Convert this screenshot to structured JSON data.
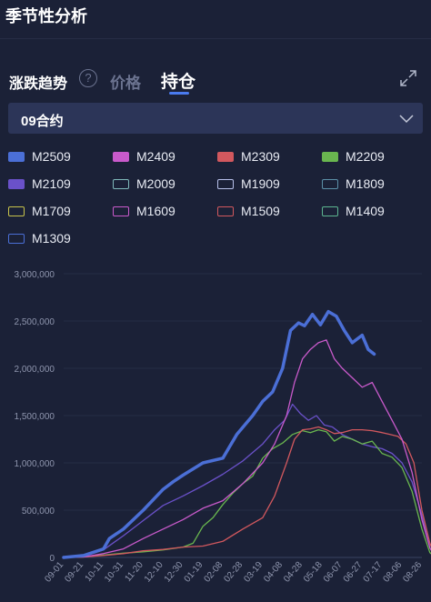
{
  "page": {
    "title": "季节性分析"
  },
  "tabs": {
    "trend_label": "涨跌趋势",
    "help_icon": "?",
    "price_label": "价格",
    "position_label": "持仓",
    "active": "position_label"
  },
  "icons": {
    "expand": "expand-icon",
    "help": "question-circle-icon",
    "dropdown": "chevron-down-icon"
  },
  "contract_select": {
    "value": "09合约"
  },
  "colors": {
    "background": "#1b2137",
    "accent": "#4a7bf0",
    "select_bg": "#2c3558"
  },
  "chart_data": {
    "type": "line",
    "x_ticks": [
      "09-01",
      "09-21",
      "10-11",
      "10-31",
      "11-20",
      "12-10",
      "12-30",
      "01-19",
      "02-08",
      "02-28",
      "03-19",
      "04-08",
      "04-28",
      "05-18",
      "06-07",
      "06-27",
      "07-17",
      "08-06",
      "08-26"
    ],
    "y_ticks": [
      "0",
      "500,000",
      "1,000,000",
      "1,500,000",
      "2,000,000",
      "2,500,000",
      "3,000,000"
    ],
    "ylim": [
      0,
      3000000
    ],
    "grid": true,
    "legend_position": "top",
    "series": [
      {
        "name": "M2509",
        "color": "#4b6fd6",
        "filled": true,
        "bold": true,
        "points": [
          [
            0,
            0
          ],
          [
            1,
            20000
          ],
          [
            2,
            90000
          ],
          [
            2.3,
            200000
          ],
          [
            3,
            300000
          ],
          [
            4,
            500000
          ],
          [
            5,
            720000
          ],
          [
            5.5,
            800000
          ],
          [
            6,
            870000
          ],
          [
            7,
            1000000
          ],
          [
            8,
            1050000
          ],
          [
            8.7,
            1300000
          ],
          [
            9.5,
            1500000
          ],
          [
            10,
            1650000
          ],
          [
            10.5,
            1750000
          ],
          [
            11,
            2000000
          ],
          [
            11.4,
            2400000
          ],
          [
            11.8,
            2480000
          ],
          [
            12.1,
            2450000
          ],
          [
            12.5,
            2570000
          ],
          [
            12.9,
            2460000
          ],
          [
            13.3,
            2600000
          ],
          [
            13.7,
            2550000
          ],
          [
            14.1,
            2400000
          ],
          [
            14.5,
            2270000
          ],
          [
            15,
            2350000
          ],
          [
            15.3,
            2200000
          ],
          [
            15.6,
            2150000
          ]
        ]
      },
      {
        "name": "M2409",
        "color": "#c95acb",
        "filled": true,
        "points": [
          [
            0,
            0
          ],
          [
            1,
            5000
          ],
          [
            2,
            40000
          ],
          [
            3,
            90000
          ],
          [
            4,
            200000
          ],
          [
            5,
            300000
          ],
          [
            6,
            400000
          ],
          [
            7,
            520000
          ],
          [
            8,
            600000
          ],
          [
            9,
            780000
          ],
          [
            10,
            1000000
          ],
          [
            10.6,
            1200000
          ],
          [
            11.2,
            1500000
          ],
          [
            11.6,
            1850000
          ],
          [
            12,
            2100000
          ],
          [
            12.4,
            2200000
          ],
          [
            12.8,
            2270000
          ],
          [
            13.2,
            2300000
          ],
          [
            13.6,
            2100000
          ],
          [
            14,
            2000000
          ],
          [
            14.5,
            1900000
          ],
          [
            15,
            1800000
          ],
          [
            15.5,
            1850000
          ],
          [
            16,
            1650000
          ],
          [
            16.5,
            1450000
          ],
          [
            17,
            1250000
          ],
          [
            17.5,
            900000
          ],
          [
            18,
            400000
          ],
          [
            18.4,
            100000
          ],
          [
            18.7,
            0
          ]
        ]
      },
      {
        "name": "M2309",
        "color": "#d2585e",
        "filled": true,
        "points": [
          [
            0,
            0
          ],
          [
            1,
            5000
          ],
          [
            2,
            20000
          ],
          [
            3,
            40000
          ],
          [
            4,
            70000
          ],
          [
            5,
            85000
          ],
          [
            6,
            110000
          ],
          [
            7,
            120000
          ],
          [
            8,
            170000
          ],
          [
            9,
            300000
          ],
          [
            10,
            420000
          ],
          [
            10.6,
            650000
          ],
          [
            11.2,
            1000000
          ],
          [
            11.6,
            1250000
          ],
          [
            12,
            1350000
          ],
          [
            12.4,
            1360000
          ],
          [
            12.8,
            1380000
          ],
          [
            13.2,
            1350000
          ],
          [
            13.6,
            1310000
          ],
          [
            14,
            1320000
          ],
          [
            14.5,
            1350000
          ],
          [
            15,
            1350000
          ],
          [
            15.5,
            1340000
          ],
          [
            16,
            1320000
          ],
          [
            16.4,
            1300000
          ],
          [
            16.8,
            1280000
          ],
          [
            17.2,
            1200000
          ],
          [
            17.6,
            1000000
          ],
          [
            18,
            500000
          ],
          [
            18.4,
            150000
          ],
          [
            18.7,
            0
          ]
        ]
      },
      {
        "name": "M2209",
        "color": "#69b64f",
        "filled": true,
        "points": [
          [
            0,
            0
          ],
          [
            1,
            5000
          ],
          [
            2,
            25000
          ],
          [
            3,
            45000
          ],
          [
            4,
            60000
          ],
          [
            5,
            80000
          ],
          [
            6,
            110000
          ],
          [
            6.5,
            150000
          ],
          [
            7,
            330000
          ],
          [
            7.5,
            420000
          ],
          [
            8,
            560000
          ],
          [
            8.5,
            680000
          ],
          [
            9,
            780000
          ],
          [
            9.5,
            860000
          ],
          [
            10,
            1050000
          ],
          [
            10.5,
            1150000
          ],
          [
            11,
            1210000
          ],
          [
            11.5,
            1300000
          ],
          [
            12,
            1340000
          ],
          [
            12.4,
            1320000
          ],
          [
            12.8,
            1350000
          ],
          [
            13.2,
            1330000
          ],
          [
            13.6,
            1230000
          ],
          [
            14,
            1280000
          ],
          [
            14.5,
            1250000
          ],
          [
            15,
            1200000
          ],
          [
            15.5,
            1230000
          ],
          [
            16,
            1100000
          ],
          [
            16.5,
            1060000
          ],
          [
            17,
            950000
          ],
          [
            17.5,
            700000
          ],
          [
            18,
            300000
          ],
          [
            18.4,
            50000
          ],
          [
            18.7,
            0
          ]
        ]
      },
      {
        "name": "M2109",
        "color": "#6a51c9",
        "filled": true,
        "points": [
          [
            0,
            0
          ],
          [
            1,
            10000
          ],
          [
            2,
            80000
          ],
          [
            3,
            230000
          ],
          [
            4,
            390000
          ],
          [
            5,
            550000
          ],
          [
            6,
            650000
          ],
          [
            7,
            760000
          ],
          [
            8,
            880000
          ],
          [
            9,
            1020000
          ],
          [
            10,
            1200000
          ],
          [
            10.6,
            1350000
          ],
          [
            11.1,
            1450000
          ],
          [
            11.5,
            1620000
          ],
          [
            11.9,
            1520000
          ],
          [
            12.3,
            1450000
          ],
          [
            12.7,
            1500000
          ],
          [
            13.1,
            1400000
          ],
          [
            13.5,
            1380000
          ],
          [
            14,
            1300000
          ],
          [
            14.5,
            1250000
          ],
          [
            15,
            1200000
          ],
          [
            15.5,
            1170000
          ],
          [
            16,
            1150000
          ],
          [
            16.5,
            1100000
          ],
          [
            17,
            1000000
          ],
          [
            17.5,
            800000
          ],
          [
            18,
            450000
          ],
          [
            18.4,
            100000
          ],
          [
            18.7,
            0
          ]
        ]
      },
      {
        "name": "M2009",
        "color": "#7fb9ba",
        "filled": false,
        "points": []
      },
      {
        "name": "M1909",
        "color": "#b7c0ea",
        "filled": false,
        "points": []
      },
      {
        "name": "M1809",
        "color": "#5c90a8",
        "filled": false,
        "points": []
      },
      {
        "name": "M1709",
        "color": "#c7c34b",
        "filled": false,
        "points": []
      },
      {
        "name": "M1609",
        "color": "#c95acb",
        "filled": false,
        "points": []
      },
      {
        "name": "M1509",
        "color": "#d2585e",
        "filled": false,
        "points": []
      },
      {
        "name": "M1409",
        "color": "#5db691",
        "filled": false,
        "points": []
      },
      {
        "name": "M1309",
        "color": "#4b6fd6",
        "filled": false,
        "points": []
      }
    ]
  }
}
